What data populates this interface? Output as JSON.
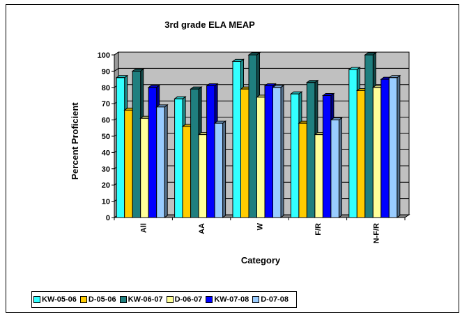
{
  "chart_data": {
    "type": "bar",
    "title": "3rd grade ELA MEAP",
    "xlabel": "Category",
    "ylabel": "Percent Proficient",
    "ylim": [
      0,
      100
    ],
    "yticks": [
      0,
      10,
      20,
      30,
      40,
      50,
      60,
      70,
      80,
      90,
      100
    ],
    "grid": true,
    "legend_position": "bottom",
    "categories": [
      "All",
      "AA",
      "W",
      "F/R",
      "N-F/R"
    ],
    "series": [
      {
        "name": "KW-05-06",
        "color": "#33ffff",
        "values": [
          86,
          73,
          96,
          76,
          91
        ]
      },
      {
        "name": "D-05-06",
        "color": "#ffcc00",
        "values": [
          66,
          56,
          79,
          58,
          78
        ]
      },
      {
        "name": "KW-06-07",
        "color": "#1f7f7f",
        "values": [
          90,
          79,
          100,
          83,
          100
        ]
      },
      {
        "name": "D-06-07",
        "color": "#ffff99",
        "values": [
          61,
          51,
          74,
          51,
          80
        ]
      },
      {
        "name": "KW-07-08",
        "color": "#0000ff",
        "values": [
          80,
          81,
          81,
          75,
          85
        ]
      },
      {
        "name": "D-07-08",
        "color": "#99ccff",
        "values": [
          68,
          58,
          80,
          60,
          86
        ]
      }
    ]
  }
}
